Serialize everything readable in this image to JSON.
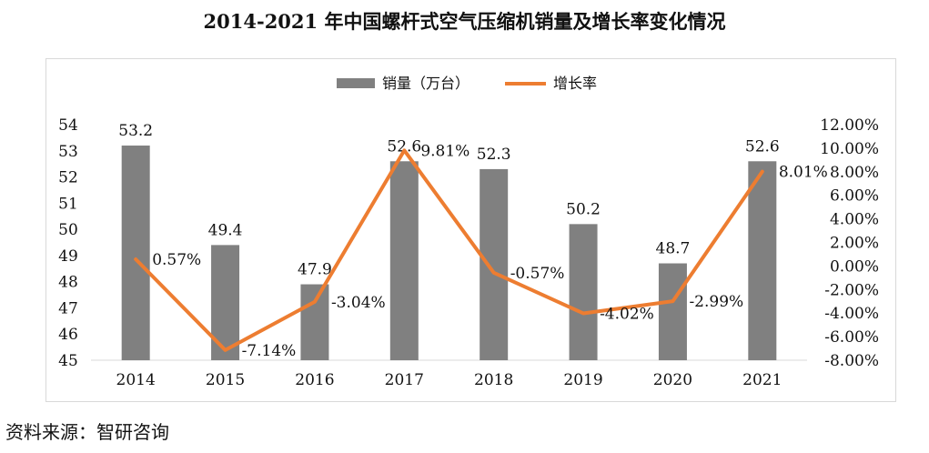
{
  "title": "2014-2021 年中国螺杆式空气压缩机销量及增长率变化情况",
  "source": "资料来源：智研咨询",
  "chart_data": {
    "type": "bar",
    "categories": [
      "2014",
      "2015",
      "2016",
      "2017",
      "2018",
      "2019",
      "2020",
      "2021"
    ],
    "series": [
      {
        "name": "销量（万台）",
        "type": "bar",
        "axis": "left",
        "values": [
          53.2,
          49.4,
          47.9,
          52.6,
          52.3,
          50.2,
          48.7,
          52.6
        ],
        "labels": [
          "53.2",
          "49.4",
          "47.9",
          "52.6",
          "52.3",
          "50.2",
          "48.7",
          "52.6"
        ]
      },
      {
        "name": "增长率",
        "type": "line",
        "axis": "right",
        "values": [
          0.57,
          -7.14,
          -3.04,
          9.81,
          -0.57,
          -4.02,
          -2.99,
          8.01
        ],
        "labels": [
          "0.57%",
          "-7.14%",
          "-3.04%",
          "9.81%",
          "-0.57%",
          "-4.02%",
          "-2.99%",
          "8.01%"
        ]
      }
    ],
    "y_left": {
      "min": 45,
      "max": 54,
      "ticks": [
        "45",
        "46",
        "47",
        "48",
        "49",
        "50",
        "51",
        "52",
        "53",
        "54"
      ]
    },
    "y_right": {
      "min": -8,
      "max": 12,
      "ticks": [
        "-8.00%",
        "-6.00%",
        "-4.00%",
        "-2.00%",
        "0.00%",
        "2.00%",
        "4.00%",
        "6.00%",
        "8.00%",
        "10.00%",
        "12.00%"
      ]
    },
    "colors": {
      "bar": "#808080",
      "line": "#ed7d31"
    },
    "legend": "top-center",
    "grid": false
  }
}
